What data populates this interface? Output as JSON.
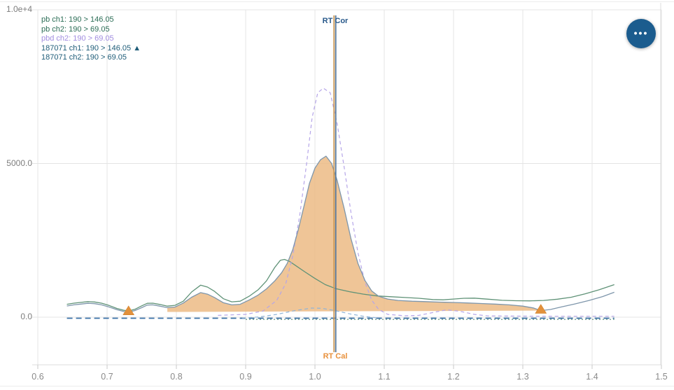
{
  "chart_data": {
    "type": "line",
    "xlabel": "",
    "ylabel": "",
    "xlim": [
      0.6,
      1.5
    ],
    "ylim": [
      -1550,
      10000
    ],
    "grid": true,
    "legend_position": "top-left",
    "x_ticks": [
      0.6,
      0.7,
      0.8,
      0.9,
      1.0,
      1.1,
      1.2,
      1.3,
      1.4,
      1.5
    ],
    "y_ticks": [
      {
        "label": "1.0e+4",
        "value": 10000
      },
      {
        "label": "5000.0",
        "value": 5000
      },
      {
        "label": "0.0",
        "value": 0
      }
    ],
    "series": [
      {
        "name": "pb ch1: 190 > 146.05",
        "color": "#5f9277",
        "width": 1.3,
        "dash": null,
        "points": [
          [
            0.642,
            420
          ],
          [
            0.652,
            455
          ],
          [
            0.662,
            480
          ],
          [
            0.672,
            505
          ],
          [
            0.682,
            495
          ],
          [
            0.692,
            455
          ],
          [
            0.703,
            380
          ],
          [
            0.714,
            285
          ],
          [
            0.724,
            225
          ],
          [
            0.731,
            205
          ],
          [
            0.74,
            255
          ],
          [
            0.75,
            370
          ],
          [
            0.758,
            450
          ],
          [
            0.766,
            455
          ],
          [
            0.776,
            415
          ],
          [
            0.787,
            360
          ],
          [
            0.798,
            385
          ],
          [
            0.81,
            520
          ],
          [
            0.822,
            820
          ],
          [
            0.835,
            1040
          ],
          [
            0.845,
            980
          ],
          [
            0.855,
            840
          ],
          [
            0.868,
            600
          ],
          [
            0.88,
            500
          ],
          [
            0.892,
            520
          ],
          [
            0.905,
            680
          ],
          [
            0.918,
            890
          ],
          [
            0.93,
            1180
          ],
          [
            0.942,
            1620
          ],
          [
            0.95,
            1850
          ],
          [
            0.956,
            1880
          ],
          [
            0.963,
            1820
          ],
          [
            0.972,
            1680
          ],
          [
            0.985,
            1480
          ],
          [
            1.0,
            1260
          ],
          [
            1.015,
            1060
          ],
          [
            1.03,
            930
          ],
          [
            1.05,
            830
          ],
          [
            1.07,
            750
          ],
          [
            1.09,
            690
          ],
          [
            1.11,
            665
          ],
          [
            1.13,
            640
          ],
          [
            1.15,
            615
          ],
          [
            1.17,
            575
          ],
          [
            1.185,
            565
          ],
          [
            1.2,
            590
          ],
          [
            1.215,
            615
          ],
          [
            1.23,
            620
          ],
          [
            1.25,
            585
          ],
          [
            1.27,
            550
          ],
          [
            1.29,
            535
          ],
          [
            1.31,
            530
          ],
          [
            1.33,
            545
          ],
          [
            1.35,
            585
          ],
          [
            1.37,
            650
          ],
          [
            1.39,
            760
          ],
          [
            1.41,
            890
          ],
          [
            1.432,
            1060
          ]
        ]
      },
      {
        "name": "pb ch2: 190 > 69.05",
        "color": "#3d7a60",
        "width": 1,
        "dash": "2,3",
        "points": [
          [
            0.9,
            -70
          ],
          [
            1.432,
            -70
          ]
        ]
      },
      {
        "name": "pbd ch2: 190 > 69.05",
        "color": "#b5a5e8",
        "width": 1.2,
        "dash": "5,4",
        "points": [
          [
            0.86,
            60
          ],
          [
            0.9,
            90
          ],
          [
            0.925,
            200
          ],
          [
            0.945,
            550
          ],
          [
            0.958,
            1100
          ],
          [
            0.968,
            2000
          ],
          [
            0.978,
            3300
          ],
          [
            0.988,
            5000
          ],
          [
            0.996,
            6500
          ],
          [
            1.004,
            7300
          ],
          [
            1.012,
            7450
          ],
          [
            1.022,
            7300
          ],
          [
            1.032,
            6300
          ],
          [
            1.042,
            4900
          ],
          [
            1.052,
            3400
          ],
          [
            1.062,
            2100
          ],
          [
            1.072,
            1150
          ],
          [
            1.082,
            550
          ],
          [
            1.092,
            250
          ],
          [
            1.105,
            90
          ],
          [
            1.13,
            45
          ],
          [
            1.15,
            60
          ],
          [
            1.17,
            150
          ],
          [
            1.19,
            240
          ],
          [
            1.21,
            190
          ],
          [
            1.23,
            90
          ],
          [
            1.25,
            40
          ],
          [
            1.3,
            35
          ],
          [
            1.35,
            30
          ],
          [
            1.4,
            30
          ],
          [
            1.432,
            30
          ]
        ]
      },
      {
        "name": "187071 ch1: 190 > 146.05",
        "color": "#7e96ab",
        "width": 1.3,
        "dash": null,
        "points": [
          [
            0.642,
            365
          ],
          [
            0.652,
            400
          ],
          [
            0.662,
            425
          ],
          [
            0.672,
            450
          ],
          [
            0.682,
            440
          ],
          [
            0.692,
            400
          ],
          [
            0.703,
            330
          ],
          [
            0.714,
            245
          ],
          [
            0.724,
            185
          ],
          [
            0.731,
            165
          ],
          [
            0.74,
            215
          ],
          [
            0.75,
            310
          ],
          [
            0.758,
            395
          ],
          [
            0.766,
            400
          ],
          [
            0.776,
            360
          ],
          [
            0.787,
            310
          ],
          [
            0.798,
            330
          ],
          [
            0.81,
            460
          ],
          [
            0.822,
            650
          ],
          [
            0.835,
            800
          ],
          [
            0.845,
            750
          ],
          [
            0.855,
            640
          ],
          [
            0.868,
            470
          ],
          [
            0.88,
            400
          ],
          [
            0.892,
            420
          ],
          [
            0.905,
            560
          ],
          [
            0.918,
            720
          ],
          [
            0.93,
            920
          ],
          [
            0.942,
            1180
          ],
          [
            0.952,
            1450
          ],
          [
            0.96,
            1750
          ],
          [
            0.968,
            2200
          ],
          [
            0.976,
            2850
          ],
          [
            0.984,
            3600
          ],
          [
            0.992,
            4350
          ],
          [
            1.0,
            4850
          ],
          [
            1.008,
            5120
          ],
          [
            1.016,
            5240
          ],
          [
            1.024,
            5000
          ],
          [
            1.032,
            4450
          ],
          [
            1.042,
            3550
          ],
          [
            1.052,
            2550
          ],
          [
            1.062,
            1750
          ],
          [
            1.072,
            1200
          ],
          [
            1.082,
            850
          ],
          [
            1.092,
            680
          ],
          [
            1.105,
            590
          ],
          [
            1.12,
            545
          ],
          [
            1.14,
            520
          ],
          [
            1.16,
            505
          ],
          [
            1.18,
            490
          ],
          [
            1.2,
            478
          ],
          [
            1.22,
            462
          ],
          [
            1.24,
            445
          ],
          [
            1.26,
            425
          ],
          [
            1.28,
            400
          ],
          [
            1.3,
            360
          ],
          [
            1.315,
            300
          ],
          [
            1.326,
            215
          ],
          [
            1.34,
            250
          ],
          [
            1.355,
            330
          ],
          [
            1.375,
            430
          ],
          [
            1.395,
            540
          ],
          [
            1.415,
            670
          ],
          [
            1.432,
            810
          ]
        ]
      },
      {
        "name": "187071 ch2: 190 > 69.05",
        "color": "#3b72a8",
        "width": 1.8,
        "dash": "8,5",
        "points": [
          [
            0.642,
            -35
          ],
          [
            1.432,
            -35
          ]
        ]
      },
      {
        "name": "",
        "color": "#8fb4d8",
        "width": 1.2,
        "dash": "5,4",
        "points": [
          [
            0.895,
            -30
          ],
          [
            0.92,
            10
          ],
          [
            0.945,
            90
          ],
          [
            0.97,
            210
          ],
          [
            0.995,
            295
          ],
          [
            1.01,
            290
          ],
          [
            1.03,
            210
          ],
          [
            1.05,
            110
          ],
          [
            1.07,
            30
          ],
          [
            1.09,
            -25
          ]
        ]
      }
    ],
    "fill": {
      "series_name": "187071 ch1: 190 > 146.05",
      "t_from": 0.787,
      "t_to": 1.326,
      "baseline_from": 170,
      "baseline_to": 215,
      "color": "rgba(236,187,133,0.85)"
    },
    "peak_markers": {
      "color": "#e2913c",
      "points": [
        {
          "t": 0.731,
          "v": 165
        },
        {
          "t": 1.326,
          "v": 215
        }
      ]
    },
    "rt_lines": [
      {
        "id": "cor",
        "label": "RT Cor",
        "x": 1.03,
        "line_color": "#54779c",
        "label_color": "#27588a"
      },
      {
        "id": "cal",
        "label": "RT Cal",
        "x": 1.0275,
        "line_color": "#cf9a55",
        "label_color": "#e8913c"
      }
    ]
  },
  "legend": {
    "items": [
      {
        "label": "pb ch1: 190 > 146.05",
        "color": "#2b6d56",
        "marker": ""
      },
      {
        "label": "pb ch2: 190 > 69.05",
        "color": "#2b6d56",
        "marker": ""
      },
      {
        "label": "pbd ch2: 190 > 69.05",
        "color": "#a28ee0",
        "marker": ""
      },
      {
        "label": "187071 ch1: 190 > 146.05",
        "color": "#1e5c78",
        "marker": "▲"
      },
      {
        "label": "187071 ch2: 190 > 69.05",
        "color": "#1e5c78",
        "marker": ""
      }
    ]
  },
  "menu_button": {
    "icon": "ellipsis-menu",
    "glyph": "•••"
  },
  "colors": {
    "grid": "#e4e4e4",
    "axis_edge": "#dcdcdc",
    "tick": "#c9c9c9",
    "fill_peak": "rgba(236,187,133,0.85)",
    "button": "#1b5c8e"
  }
}
